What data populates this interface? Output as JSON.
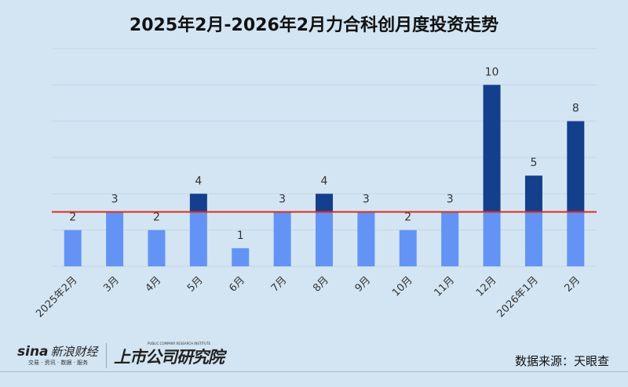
{
  "chart_data": {
    "type": "bar",
    "title": "2025年2月-2026年2月力合科创月度投资走势",
    "categories": [
      "2025年2月",
      "3月",
      "4月",
      "5月",
      "6月",
      "7月",
      "8月",
      "9月",
      "10月",
      "11月",
      "12月",
      "2026年1月",
      "2月"
    ],
    "values": [
      2,
      3,
      2,
      4,
      1,
      3,
      4,
      3,
      2,
      3,
      10,
      5,
      8
    ],
    "reference_line": 3,
    "ylim": [
      0,
      12
    ],
    "grid": true,
    "colors": {
      "base": "#6394f5",
      "above_line": "#143f8c",
      "reference_line": "#e02a1a"
    }
  },
  "footer": {
    "sina_logo": "sina",
    "sina_name": "新浪财经",
    "sina_sub": "交易 · 资讯 · 数据 · 服务",
    "institute": "上市公司研究院",
    "institute_en": "PUBLIC COMPANY RESEARCH INSTITUTE",
    "source": "数据来源：天眼查"
  }
}
